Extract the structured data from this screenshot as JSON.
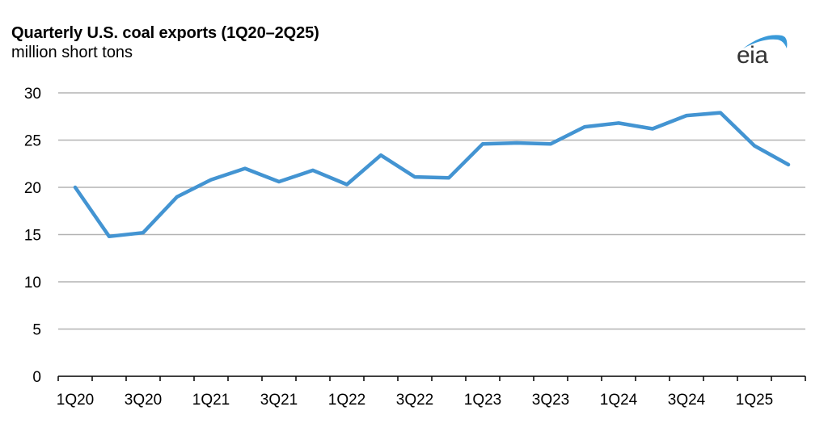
{
  "header": {
    "title": "Quarterly U.S. coal exports (1Q20–2Q25)",
    "subtitle": "million short tons",
    "logo_text": "eia"
  },
  "colors": {
    "line": "#4394d2",
    "grid": "#b3b3b3",
    "axis": "#000000",
    "logo_arc": "#3a9ad9",
    "logo_text": "#333333"
  },
  "chart_data": {
    "type": "line",
    "title": "Quarterly U.S. coal exports (1Q20–2Q25)",
    "subtitle": "million short tons",
    "xlabel": "",
    "ylabel": "million short tons",
    "ylim": [
      0,
      30
    ],
    "yticks": [
      0,
      5,
      10,
      15,
      20,
      25,
      30
    ],
    "grid": true,
    "legend": null,
    "categories": [
      "1Q20",
      "2Q20",
      "3Q20",
      "4Q20",
      "1Q21",
      "2Q21",
      "3Q21",
      "4Q21",
      "1Q22",
      "2Q22",
      "3Q22",
      "4Q22",
      "1Q23",
      "2Q23",
      "3Q23",
      "4Q23",
      "1Q24",
      "2Q24",
      "3Q24",
      "4Q24",
      "1Q25",
      "2Q25"
    ],
    "xtick_labels": [
      "1Q20",
      "3Q20",
      "1Q21",
      "3Q21",
      "1Q22",
      "3Q22",
      "1Q23",
      "3Q23",
      "1Q24",
      "3Q24",
      "1Q25"
    ],
    "series": [
      {
        "name": "U.S. coal exports",
        "values": [
          20.0,
          14.8,
          15.2,
          19.0,
          20.8,
          22.0,
          20.6,
          21.8,
          20.3,
          23.4,
          21.1,
          21.0,
          24.6,
          24.7,
          24.6,
          26.4,
          26.8,
          26.2,
          27.6,
          27.9,
          24.4,
          22.4
        ]
      }
    ]
  }
}
